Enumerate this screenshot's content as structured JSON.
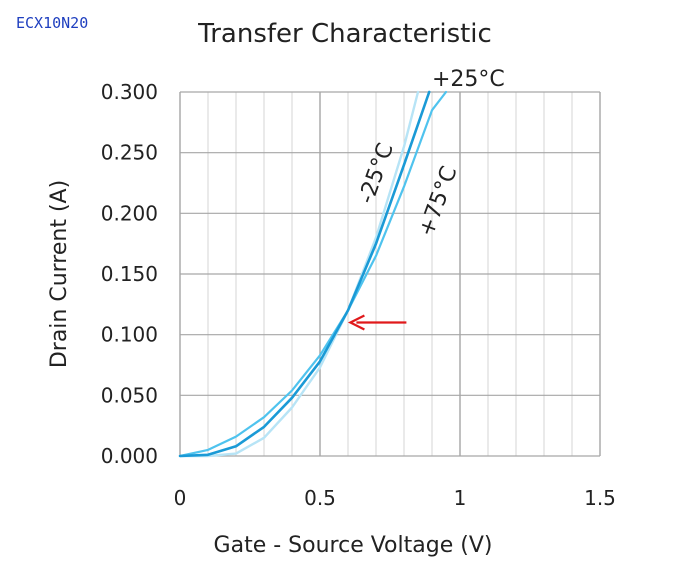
{
  "part_code": "ECX10N20",
  "chart_data": {
    "type": "line",
    "title": "Transfer Characteristic",
    "xlabel": "Gate - Source Voltage  (V)",
    "ylabel": "Drain Current  (A)",
    "xlim": [
      0,
      1.5
    ],
    "ylim": [
      0,
      0.3
    ],
    "x_ticks": [
      "0",
      "0.5",
      "1",
      "1.5"
    ],
    "y_ticks": [
      "0.000",
      "0.050",
      "0.100",
      "0.150",
      "0.200",
      "0.250",
      "0.300"
    ],
    "grid": true,
    "series": [
      {
        "name": "-25°C",
        "color": "#4fc3ee",
        "x": [
          0,
          0.1,
          0.2,
          0.3,
          0.4,
          0.5,
          0.6,
          0.7,
          0.8,
          0.9,
          0.95
        ],
        "y": [
          0,
          0.005,
          0.016,
          0.032,
          0.054,
          0.083,
          0.12,
          0.165,
          0.222,
          0.285,
          0.3
        ]
      },
      {
        "name": "+25°C",
        "color": "#1a9ad6",
        "x": [
          0,
          0.1,
          0.2,
          0.3,
          0.4,
          0.5,
          0.6,
          0.7,
          0.8,
          0.89
        ],
        "y": [
          0,
          0.001,
          0.008,
          0.024,
          0.048,
          0.078,
          0.12,
          0.175,
          0.24,
          0.3
        ]
      },
      {
        "name": "+75°C",
        "color": "#b7e4f6",
        "x": [
          0,
          0.1,
          0.2,
          0.3,
          0.4,
          0.5,
          0.6,
          0.7,
          0.8,
          0.85
        ],
        "y": [
          0,
          0,
          0.002,
          0.015,
          0.04,
          0.073,
          0.12,
          0.18,
          0.255,
          0.3
        ]
      }
    ],
    "annotations": [
      {
        "type": "arrow",
        "color": "#e0191b",
        "target_x": 0.58,
        "target_y": 0.11
      }
    ]
  }
}
